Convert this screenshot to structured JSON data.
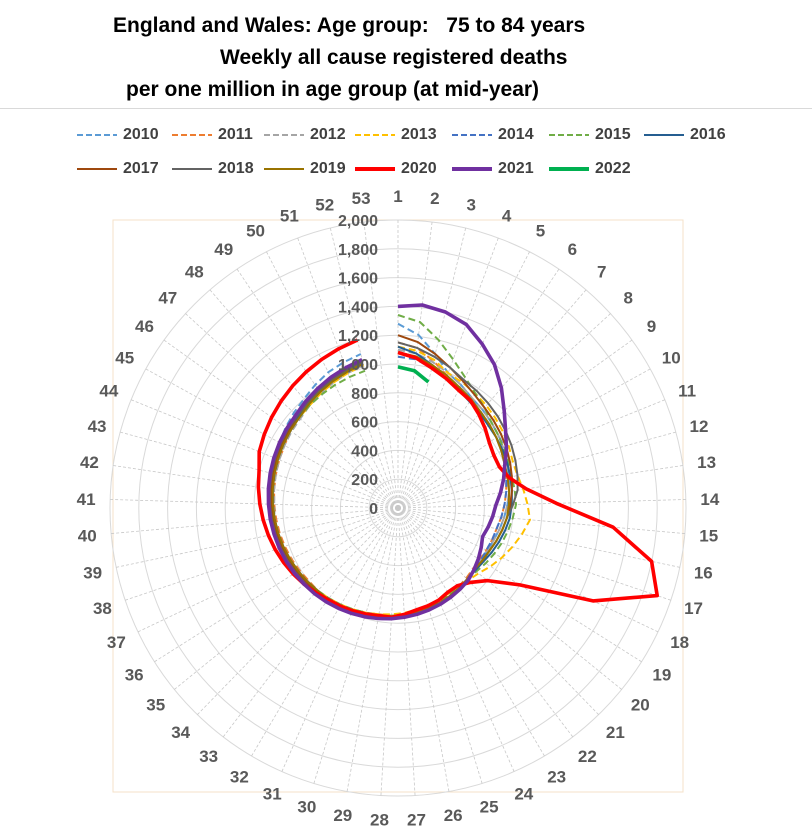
{
  "title": {
    "line1": "England and Wales: Age group:   75 to 84 years",
    "line2": "Weekly all cause registered deaths",
    "line3": "per one million in age group (at mid-year)"
  },
  "colors": {
    "2010": "#5b9bd5",
    "2011": "#ed7d31",
    "2012": "#a5a5a5",
    "2013": "#ffc000",
    "2014": "#4472c4",
    "2015": "#70ad47",
    "2016": "#255e91",
    "2017": "#9e480e",
    "2018": "#636363",
    "2019": "#997300",
    "2020": "#ff0000",
    "2021": "#7030a0",
    "2022": "#00b050"
  },
  "chart_data": {
    "type": "radar",
    "title": "England and Wales: Age group:   75 to 84 years Weekly all cause registered deaths per one million in age group (at mid-year)",
    "categories": [
      "1",
      "2",
      "3",
      "4",
      "5",
      "6",
      "7",
      "8",
      "9",
      "10",
      "11",
      "12",
      "13",
      "14",
      "15",
      "16",
      "17",
      "18",
      "19",
      "20",
      "21",
      "22",
      "23",
      "24",
      "25",
      "26",
      "27",
      "28",
      "29",
      "30",
      "31",
      "32",
      "33",
      "34",
      "35",
      "36",
      "37",
      "38",
      "39",
      "40",
      "41",
      "42",
      "43",
      "44",
      "45",
      "46",
      "47",
      "48",
      "49",
      "50",
      "51",
      "52",
      "53"
    ],
    "radial_ticks": [
      "0",
      "200",
      "400",
      "600",
      "800",
      "1,000",
      "1,200",
      "1,400",
      "1,600",
      "1,800",
      "2,000"
    ],
    "rlim": [
      0,
      2000
    ],
    "grid": true,
    "legend_position": "top",
    "series": [
      {
        "name": "2010",
        "style": "dashed",
        "values": [
          1280,
          1210,
          1100,
          1000,
          960,
          920,
          900,
          880,
          860,
          850,
          820,
          800,
          780,
          760,
          740,
          720,
          700,
          690,
          680,
          680,
          690,
          700,
          710,
          720,
          730,
          740,
          750,
          760,
          760,
          770,
          780,
          790,
          800,
          810,
          820,
          830,
          840,
          850,
          860,
          870,
          880,
          890,
          900,
          920,
          940,
          960,
          980,
          1000,
          1030,
          1060,
          1080,
          1100,
          null
        ]
      },
      {
        "name": "2011",
        "style": "dashed",
        "values": [
          1150,
          1120,
          1050,
          980,
          940,
          900,
          880,
          860,
          840,
          820,
          800,
          780,
          760,
          740,
          720,
          700,
          690,
          680,
          670,
          670,
          680,
          690,
          700,
          710,
          720,
          730,
          740,
          750,
          750,
          760,
          770,
          780,
          790,
          800,
          800,
          810,
          820,
          830,
          840,
          850,
          860,
          870,
          880,
          890,
          900,
          920,
          940,
          960,
          980,
          1000,
          1020,
          1040,
          null
        ]
      },
      {
        "name": "2012",
        "style": "dashed",
        "values": [
          1100,
          1080,
          1040,
          1000,
          960,
          920,
          900,
          880,
          860,
          840,
          820,
          800,
          780,
          760,
          740,
          720,
          700,
          690,
          680,
          680,
          690,
          700,
          710,
          720,
          730,
          740,
          750,
          760,
          760,
          760,
          770,
          780,
          790,
          800,
          810,
          820,
          830,
          840,
          850,
          860,
          860,
          870,
          880,
          890,
          900,
          910,
          920,
          940,
          960,
          980,
          1000,
          1020,
          null
        ]
      },
      {
        "name": "2013",
        "style": "dashed",
        "values": [
          1120,
          1100,
          1060,
          1000,
          980,
          960,
          940,
          920,
          900,
          880,
          860,
          860,
          880,
          900,
          920,
          880,
          840,
          800,
          760,
          720,
          700,
          690,
          690,
          700,
          710,
          720,
          730,
          740,
          750,
          760,
          770,
          780,
          790,
          800,
          810,
          820,
          830,
          840,
          850,
          860,
          870,
          880,
          890,
          900,
          910,
          920,
          930,
          940,
          960,
          980,
          1000,
          1020,
          null
        ]
      },
      {
        "name": "2014",
        "style": "dashed",
        "values": [
          1050,
          1040,
          1000,
          960,
          930,
          900,
          880,
          860,
          840,
          820,
          800,
          780,
          760,
          740,
          720,
          700,
          690,
          680,
          680,
          680,
          690,
          700,
          710,
          720,
          730,
          740,
          750,
          760,
          760,
          770,
          780,
          790,
          800,
          800,
          810,
          820,
          830,
          840,
          850,
          860,
          870,
          880,
          890,
          900,
          910,
          920,
          930,
          950,
          970,
          990,
          1010,
          1030,
          null
        ]
      },
      {
        "name": "2015",
        "style": "dashed",
        "values": [
          1340,
          1300,
          1200,
          1100,
          1020,
          960,
          920,
          880,
          860,
          840,
          830,
          820,
          820,
          820,
          800,
          780,
          760,
          740,
          720,
          700,
          690,
          690,
          700,
          710,
          720,
          730,
          740,
          750,
          760,
          760,
          770,
          780,
          790,
          800,
          810,
          820,
          830,
          840,
          850,
          860,
          870,
          880,
          890,
          900,
          910,
          920,
          930,
          940,
          950,
          960,
          970,
          980,
          null
        ]
      },
      {
        "name": "2016",
        "style": "solid",
        "values": [
          1120,
          1080,
          1020,
          960,
          920,
          890,
          870,
          850,
          840,
          830,
          820,
          810,
          800,
          790,
          780,
          760,
          740,
          720,
          700,
          690,
          690,
          700,
          710,
          720,
          730,
          740,
          750,
          760,
          760,
          770,
          780,
          790,
          800,
          800,
          810,
          820,
          830,
          840,
          850,
          860,
          870,
          880,
          890,
          900,
          910,
          920,
          940,
          960,
          980,
          1000,
          1020,
          1040,
          null
        ]
      },
      {
        "name": "2017",
        "style": "solid",
        "values": [
          1200,
          1160,
          1100,
          1040,
          990,
          950,
          920,
          900,
          880,
          860,
          840,
          820,
          800,
          780,
          760,
          740,
          720,
          700,
          690,
          680,
          690,
          700,
          710,
          720,
          730,
          740,
          750,
          760,
          770,
          780,
          790,
          800,
          800,
          810,
          820,
          830,
          840,
          850,
          860,
          870,
          880,
          890,
          900,
          910,
          920,
          930,
          950,
          970,
          990,
          1010,
          1030,
          1050,
          null
        ]
      },
      {
        "name": "2018",
        "style": "solid",
        "values": [
          1150,
          1120,
          1080,
          1040,
          1000,
          980,
          960,
          940,
          920,
          900,
          880,
          860,
          840,
          800,
          760,
          740,
          720,
          700,
          690,
          680,
          690,
          700,
          710,
          720,
          730,
          740,
          750,
          760,
          770,
          780,
          790,
          800,
          810,
          820,
          830,
          840,
          850,
          860,
          870,
          880,
          890,
          900,
          910,
          920,
          930,
          940,
          950,
          960,
          980,
          1000,
          1020,
          1040,
          null
        ]
      },
      {
        "name": "2019",
        "style": "solid",
        "values": [
          1080,
          1060,
          1020,
          980,
          940,
          910,
          880,
          860,
          840,
          820,
          800,
          790,
          780,
          770,
          760,
          740,
          720,
          700,
          690,
          680,
          690,
          700,
          710,
          720,
          730,
          740,
          750,
          760,
          760,
          770,
          780,
          790,
          800,
          800,
          810,
          820,
          830,
          840,
          850,
          860,
          870,
          880,
          890,
          900,
          910,
          920,
          930,
          950,
          970,
          990,
          1010,
          1030,
          null
        ]
      },
      {
        "name": "2020",
        "style": "solid",
        "values": [
          1080,
          1050,
          1000,
          960,
          920,
          900,
          860,
          820,
          780,
          760,
          760,
          800,
          900,
          1100,
          1500,
          1800,
          1900,
          1500,
          1000,
          800,
          720,
          680,
          680,
          700,
          710,
          720,
          740,
          760,
          760,
          770,
          780,
          790,
          800,
          820,
          840,
          860,
          880,
          900,
          920,
          940,
          960,
          980,
          1000,
          1040,
          1060,
          1080,
          1100,
          1120,
          1140,
          1160,
          1180,
          1200,
          null
        ]
      },
      {
        "name": "2021",
        "style": "solid",
        "values": [
          1400,
          1420,
          1400,
          1360,
          1280,
          1200,
          1100,
          1000,
          920,
          860,
          800,
          760,
          720,
          680,
          660,
          640,
          620,
          640,
          660,
          680,
          700,
          710,
          720,
          730,
          740,
          750,
          760,
          770,
          780,
          790,
          800,
          810,
          820,
          830,
          840,
          850,
          860,
          870,
          880,
          890,
          900,
          910,
          920,
          930,
          940,
          950,
          960,
          980,
          1000,
          1020,
          1040,
          1060,
          null
        ]
      },
      {
        "name": "2022",
        "style": "solid",
        "values": [
          980,
          960,
          900,
          null,
          null,
          null,
          null,
          null,
          null,
          null,
          null,
          null,
          null,
          null,
          null,
          null,
          null,
          null,
          null,
          null,
          null,
          null,
          null,
          null,
          null,
          null,
          null,
          null,
          null,
          null,
          null,
          null,
          null,
          null,
          null,
          null,
          null,
          null,
          null,
          null,
          null,
          null,
          null,
          null,
          null,
          null,
          null,
          null,
          null,
          null,
          null,
          null,
          null
        ]
      }
    ]
  }
}
